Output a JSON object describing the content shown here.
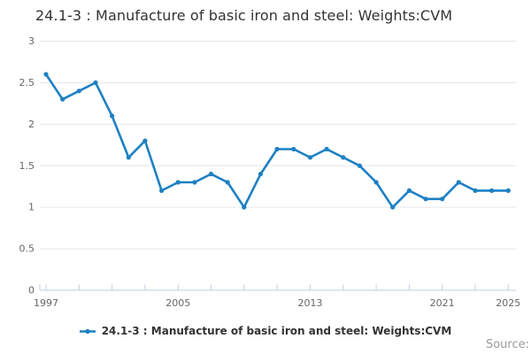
{
  "title": "24.1-3 : Manufacture of basic iron and steel: Weights:CVM",
  "legend": {
    "label": "24.1-3 : Manufacture of basic iron and steel: Weights:CVM",
    "marker_icon": "line-with-dot"
  },
  "source": {
    "label": "Source:"
  },
  "colors": {
    "series_line": "#1d80c3",
    "gridline": "#e6e6e6",
    "axis_line": "#bfcde0",
    "tick_label": "#666666",
    "title_text": "#333333",
    "legend_text": "#333333",
    "source_text": "#999999",
    "background": "#ffffff"
  },
  "chart_data": {
    "type": "line",
    "title": "24.1-3 : Manufacture of basic iron and steel: Weights:CVM",
    "x": [
      1997,
      1998,
      1999,
      2000,
      2001,
      2002,
      2003,
      2004,
      2005,
      2006,
      2007,
      2008,
      2009,
      2010,
      2011,
      2012,
      2013,
      2014,
      2015,
      2016,
      2017,
      2018,
      2019,
      2020,
      2021,
      2022,
      2023,
      2024,
      2025
    ],
    "series": [
      {
        "name": "24.1-3 : Manufacture of basic iron and steel: Weights:CVM",
        "values": [
          2.6,
          2.3,
          2.4,
          2.5,
          2.1,
          1.6,
          1.8,
          1.2,
          1.3,
          1.3,
          1.4,
          1.3,
          1.0,
          1.4,
          1.7,
          1.7,
          1.6,
          1.7,
          1.6,
          1.5,
          1.3,
          1.0,
          1.2,
          1.1,
          1.1,
          1.3,
          1.2,
          1.2,
          1.2
        ]
      }
    ],
    "xlabel": "",
    "ylabel": "",
    "xlim": [
      1997,
      2025
    ],
    "ylim": [
      0,
      3
    ],
    "yticks": [
      0,
      0.5,
      1,
      1.5,
      2,
      2.5,
      3
    ],
    "xtick_labels": [
      1997,
      2005,
      2013,
      2021,
      2025
    ],
    "xtick_step": 2,
    "grid": "horizontal",
    "legend_position": "bottom",
    "marker": "circle"
  }
}
